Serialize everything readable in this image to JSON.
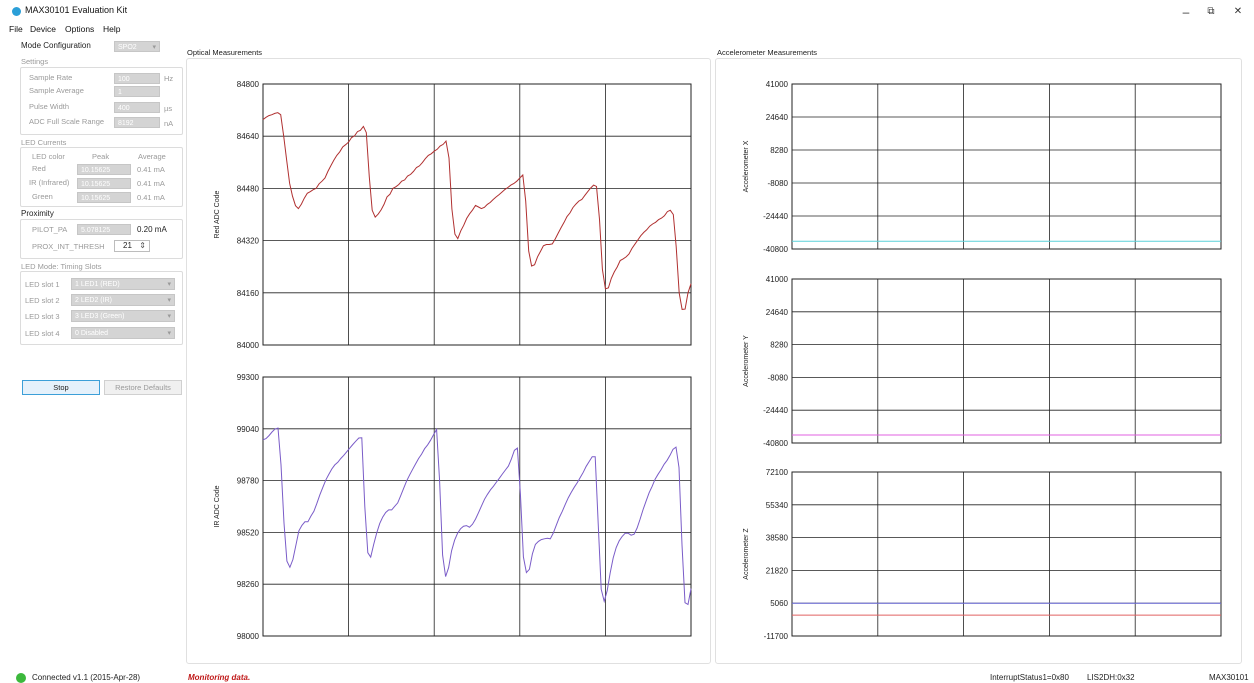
{
  "window": {
    "title": "MAX30101 Evaluation Kit",
    "minimize": "–",
    "restore": "⧉",
    "close": "✕"
  },
  "menu": [
    "File",
    "Device",
    "Options",
    "Help"
  ],
  "mode": {
    "label": "Mode Configuration",
    "value": "SPO2"
  },
  "settings": {
    "title": "Settings",
    "rows": [
      {
        "label": "Sample Rate",
        "value": "100",
        "unit": "Hz"
      },
      {
        "label": "Sample Average",
        "value": "1",
        "unit": ""
      },
      {
        "label": "Pulse Width",
        "value": "400",
        "unit": "µs"
      },
      {
        "label": "ADC Full Scale Range",
        "value": "8192",
        "unit": "nA"
      }
    ]
  },
  "led_currents": {
    "title": "LED Currents",
    "col_color": "LED color",
    "col_peak": "Peak",
    "col_avg": "Average",
    "rows": [
      {
        "label": "Red",
        "peak": "10.15625",
        "avg": "0.41 mA"
      },
      {
        "label": "IR (Infrared)",
        "peak": "10.15625",
        "avg": "0.41 mA"
      },
      {
        "label": "Green",
        "peak": "10.15625",
        "avg": "0.41 mA"
      }
    ]
  },
  "proximity": {
    "title": "Proximity",
    "pilot_label": "PILOT_PA",
    "pilot_value": "5.078125",
    "pilot_ma": "0.20 mA",
    "thresh_label": "PROX_INT_THRESH",
    "thresh_value": "21",
    "thresh_arrows": "⇕"
  },
  "timing": {
    "title": "LED Mode: Timing Slots",
    "slots": [
      {
        "label": "LED slot 1",
        "value": "1 LED1 (RED)"
      },
      {
        "label": "LED slot 2",
        "value": "2 LED2 (IR)"
      },
      {
        "label": "LED slot 3",
        "value": "3 LED3 (Green)"
      },
      {
        "label": "LED slot 4",
        "value": "0 Disabled"
      }
    ]
  },
  "buttons": {
    "stop": "Stop",
    "restore": "Restore Defaults"
  },
  "optical": {
    "title": "Optical Measurements"
  },
  "accel": {
    "title": "Accelerometer Measurements"
  },
  "status": {
    "connected": "Connected v1.1 (2015-Apr-28)",
    "monitoring": "Monitoring data.",
    "interrupt": "InterruptStatus1=0x80",
    "lis": "LIS2DH:0x32",
    "device": "MAX30101"
  },
  "colors": {
    "red_trace": "#b03030",
    "ir_trace": "#7a5cc8",
    "accel_x": "#5bd0d8",
    "accel_y": "#e060e0",
    "accel_z_a": "#7070e0",
    "accel_z_b": "#e06060",
    "status_led": "#3cb83c"
  },
  "chart_data": [
    {
      "type": "line",
      "ylabel": "Red ADC Code",
      "ylim": [
        84000,
        84800
      ],
      "yticks": [
        "84800",
        "84640",
        "84480",
        "84320",
        "84160",
        "84000"
      ],
      "series": [
        {
          "color": "#b03030",
          "values": [
            84691,
            84698,
            84703,
            84706,
            84710,
            84712,
            84706,
            84640,
            84568,
            84496,
            84456,
            84427,
            84418,
            84432,
            84450,
            84465,
            84470,
            84476,
            84480,
            84494,
            84502,
            84512,
            84532,
            84550,
            84566,
            84581,
            84592,
            84607,
            84614,
            84622,
            84636,
            84641,
            84654,
            84658,
            84670,
            84651,
            84515,
            84413,
            84392,
            84401,
            84414,
            84431,
            84454,
            84462,
            84480,
            84485,
            84492,
            84502,
            84506,
            84518,
            84523,
            84532,
            84544,
            84549,
            84559,
            84571,
            84581,
            84586,
            84594,
            84600,
            84610,
            84615,
            84625,
            84573,
            84417,
            84340,
            84326,
            84350,
            84367,
            84388,
            84402,
            84414,
            84428,
            84423,
            84418,
            84422,
            84431,
            84437,
            84446,
            84454,
            84461,
            84469,
            84477,
            84483,
            84490,
            84495,
            84502,
            84512,
            84521,
            84441,
            84288,
            84242,
            84246,
            84270,
            84287,
            84304,
            84308,
            84308,
            84310,
            84325,
            84343,
            84360,
            84376,
            84394,
            84405,
            84421,
            84432,
            84441,
            84446,
            84458,
            84470,
            84481,
            84490,
            84486,
            84385,
            84232,
            84172,
            84175,
            84204,
            84224,
            84239,
            84259,
            84264,
            84270,
            84279,
            84296,
            84309,
            84322,
            84335,
            84345,
            84353,
            84364,
            84371,
            84376,
            84384,
            84389,
            84396,
            84409,
            84413,
            84400,
            84301,
            84159,
            84109,
            84110,
            84160,
            84188
          ]
        }
      ]
    },
    {
      "type": "line",
      "ylabel": "IR ADC Code",
      "ylim": [
        98000,
        99300
      ],
      "yticks": [
        "99300",
        "99040",
        "98780",
        "98520",
        "98260",
        "98000"
      ],
      "series": [
        {
          "color": "#7a5cc8",
          "values": [
            98985,
            98991,
            99006,
            99024,
            99039,
            99044,
            98860,
            98567,
            98376,
            98345,
            98384,
            98456,
            98528,
            98555,
            98573,
            98573,
            98602,
            98626,
            98666,
            98709,
            98747,
            98784,
            98811,
            98838,
            98859,
            98872,
            98891,
            98907,
            98925,
            98943,
            98961,
            98978,
            98994,
            98995,
            98650,
            98418,
            98396,
            98460,
            98517,
            98564,
            98597,
            98620,
            98633,
            98633,
            98651,
            98668,
            98704,
            98742,
            98779,
            98809,
            98837,
            98864,
            98891,
            98913,
            98940,
            98959,
            98983,
            99011,
            99037,
            98778,
            98406,
            98298,
            98343,
            98428,
            98481,
            98515,
            98538,
            98551,
            98554,
            98546,
            98561,
            98587,
            98619,
            98653,
            98686,
            98711,
            98734,
            98752,
            98773,
            98792,
            98813,
            98833,
            98853,
            98889,
            98932,
            98943,
            98713,
            98397,
            98318,
            98335,
            98412,
            98460,
            98475,
            98484,
            98488,
            98491,
            98488,
            98517,
            98556,
            98595,
            98626,
            98661,
            98694,
            98722,
            98747,
            98770,
            98796,
            98822,
            98852,
            98876,
            98900,
            98900,
            98564,
            98235,
            98174,
            98228,
            98317,
            98392,
            98444,
            98478,
            98500,
            98516,
            98516,
            98506,
            98511,
            98542,
            98587,
            98635,
            98677,
            98719,
            98751,
            98787,
            98812,
            98835,
            98862,
            98882,
            98907,
            98937,
            98948,
            98845,
            98458,
            98167,
            98158,
            98238
          ]
        }
      ]
    },
    {
      "type": "line",
      "ylabel": "Accelerometer X",
      "ylim": [
        -40800,
        41000
      ],
      "yticks": [
        "41000",
        "24640",
        "8280",
        "-8080",
        "-24440",
        "-40800"
      ],
      "series": [
        {
          "color": "#5bd0d8",
          "values": [
            -37000,
            -37000
          ]
        }
      ]
    },
    {
      "type": "line",
      "ylabel": "Accelerometer Y",
      "ylim": [
        -40800,
        41000
      ],
      "yticks": [
        "41000",
        "24640",
        "8280",
        "-8080",
        "-24440",
        "-40800"
      ],
      "series": [
        {
          "color": "#e060e0",
          "values": [
            -36800,
            -36800
          ]
        }
      ]
    },
    {
      "type": "line",
      "ylabel": "Accelerometer Z",
      "ylim": [
        -11700,
        72100
      ],
      "yticks": [
        "72100",
        "55340",
        "38580",
        "21820",
        "5060",
        "-11700"
      ],
      "series": [
        {
          "color": "#7070e0",
          "values": [
            5000,
            5000
          ]
        },
        {
          "color": "#e06060",
          "values": [
            -1000,
            -1000
          ]
        }
      ]
    }
  ]
}
